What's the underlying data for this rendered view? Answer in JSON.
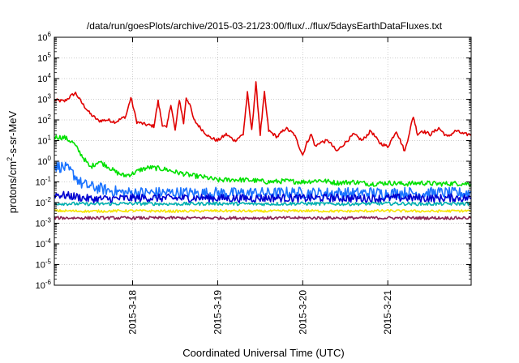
{
  "chart_data": {
    "type": "line",
    "title": "/data/run/goesPlots/archive/2015-03-21/23:00/flux/../flux/5daysEarthDataFluxes.txt",
    "xlabel": "Coordinated Universal Time (UTC)",
    "ylabel": {
      "prefix": "protons/cm",
      "sup": "2",
      "suffix": "-s-sr-MeV"
    },
    "x_range_days": [
      17.08,
      21.98
    ],
    "x_ticks": [
      {
        "day": 18,
        "label": "2015-3-18"
      },
      {
        "day": 19,
        "label": "2015-3-19"
      },
      {
        "day": 20,
        "label": "2015-3-20"
      },
      {
        "day": 21,
        "label": "2015-3-21"
      }
    ],
    "y_scale": "log",
    "y_range": [
      1e-06,
      1000000.0
    ],
    "y_ticks": [
      {
        "exp": -6,
        "base": "10",
        "sup": "-6"
      },
      {
        "exp": -5,
        "base": "10",
        "sup": "-5"
      },
      {
        "exp": -4,
        "base": "10",
        "sup": "-4"
      },
      {
        "exp": -3,
        "base": "10",
        "sup": "-3"
      },
      {
        "exp": -2,
        "base": "10",
        "sup": "-2"
      },
      {
        "exp": -1,
        "base": "10",
        "sup": "-1"
      },
      {
        "exp": 0,
        "base": "10",
        "sup": "0"
      },
      {
        "exp": 1,
        "base": "10",
        "sup": "1"
      },
      {
        "exp": 2,
        "base": "10",
        "sup": "2"
      },
      {
        "exp": 3,
        "base": "10",
        "sup": "3"
      },
      {
        "exp": 4,
        "base": "10",
        "sup": "4"
      },
      {
        "exp": 5,
        "base": "10",
        "sup": "5"
      },
      {
        "exp": 6,
        "base": "10",
        "sup": "6"
      }
    ],
    "grid": true,
    "series": [
      {
        "color": "#e00000",
        "x": [
          17.08,
          17.2,
          17.28,
          17.33,
          17.4,
          17.5,
          17.6,
          17.7,
          17.8,
          17.92,
          17.98,
          18.05,
          18.15,
          18.25,
          18.3,
          18.35,
          18.4,
          18.45,
          18.5,
          18.55,
          18.6,
          18.63,
          18.67,
          18.72,
          18.8,
          18.9,
          19.0,
          19.1,
          19.2,
          19.3,
          19.35,
          19.4,
          19.45,
          19.5,
          19.55,
          19.6,
          19.7,
          19.8,
          19.9,
          20.0,
          20.05,
          20.1,
          20.15,
          20.2,
          20.3,
          20.4,
          20.5,
          20.6,
          20.7,
          20.8,
          20.9,
          21.0,
          21.1,
          21.2,
          21.3,
          21.35,
          21.4,
          21.5,
          21.6,
          21.7,
          21.8,
          21.9,
          21.98
        ],
        "y": [
          900,
          800,
          1500,
          2000,
          700,
          200,
          90,
          100,
          80,
          150,
          1200,
          80,
          60,
          50,
          800,
          60,
          40,
          600,
          30,
          1000,
          70,
          1200,
          600,
          100,
          40,
          15,
          10,
          20,
          10,
          20,
          2000,
          30,
          6000,
          20,
          2000,
          30,
          15,
          40,
          20,
          2,
          8,
          20,
          5,
          8,
          10,
          3,
          8,
          20,
          10,
          30,
          8,
          5,
          30,
          3,
          150,
          20,
          30,
          20,
          40,
          15,
          30,
          20,
          20
        ]
      },
      {
        "color": "#00e000",
        "x": [
          17.08,
          17.2,
          17.3,
          17.4,
          17.5,
          17.6,
          17.7,
          17.8,
          17.9,
          18.0,
          18.1,
          18.2,
          18.3,
          18.4,
          18.5,
          18.6,
          18.7,
          18.8,
          18.9,
          19.0,
          19.2,
          19.4,
          19.6,
          19.8,
          20.0,
          20.2,
          20.4,
          20.6,
          20.8,
          21.0,
          21.2,
          21.4,
          21.6,
          21.8,
          21.98
        ],
        "y": [
          15,
          14,
          8,
          2,
          0.5,
          1,
          0.6,
          0.3,
          0.2,
          0.25,
          0.4,
          0.5,
          0.45,
          0.4,
          0.3,
          0.25,
          0.2,
          0.18,
          0.15,
          0.12,
          0.13,
          0.12,
          0.1,
          0.11,
          0.1,
          0.12,
          0.09,
          0.1,
          0.08,
          0.09,
          0.08,
          0.09,
          0.08,
          0.085,
          0.08
        ]
      },
      {
        "color": "#1a73ff",
        "x": [
          17.08,
          17.2,
          17.3,
          17.4,
          17.5,
          17.6,
          17.7,
          17.8,
          17.9,
          18.0,
          18.2,
          18.4,
          18.6,
          18.8,
          19.0,
          19.2,
          19.4,
          19.6,
          19.8,
          20.0,
          20.2,
          20.4,
          20.6,
          20.8,
          21.0,
          21.2,
          21.4,
          21.6,
          21.8,
          21.98
        ],
        "y": [
          0.6,
          0.5,
          0.25,
          0.08,
          0.06,
          0.05,
          0.04,
          0.035,
          0.03,
          0.03,
          0.03,
          0.03,
          0.03,
          0.028,
          0.03,
          0.028,
          0.03,
          0.028,
          0.03,
          0.03,
          0.028,
          0.03,
          0.028,
          0.03,
          0.028,
          0.03,
          0.028,
          0.03,
          0.028,
          0.03
        ]
      },
      {
        "color": "#0000d0",
        "x": [
          17.08,
          17.3,
          17.5,
          17.7,
          17.9,
          18.2,
          18.5,
          18.8,
          19.1,
          19.4,
          19.7,
          20.0,
          20.3,
          20.6,
          20.9,
          21.2,
          21.5,
          21.8,
          21.98
        ],
        "y": [
          0.025,
          0.02,
          0.015,
          0.015,
          0.016,
          0.017,
          0.016,
          0.017,
          0.016,
          0.016,
          0.017,
          0.016,
          0.017,
          0.016,
          0.016,
          0.017,
          0.016,
          0.017,
          0.016
        ]
      },
      {
        "color": "#00b0b0",
        "x": [
          17.08,
          17.5,
          18.0,
          18.5,
          19.0,
          19.5,
          20.0,
          20.5,
          21.0,
          21.5,
          21.98
        ],
        "y": [
          0.009,
          0.0085,
          0.009,
          0.0085,
          0.009,
          0.0085,
          0.009,
          0.0085,
          0.009,
          0.0085,
          0.009
        ]
      },
      {
        "color": "#f5e600",
        "x": [
          17.08,
          17.5,
          18.0,
          18.5,
          19.0,
          19.5,
          20.0,
          20.5,
          21.0,
          21.5,
          21.98
        ],
        "y": [
          0.004,
          0.0038,
          0.004,
          0.0038,
          0.004,
          0.0038,
          0.004,
          0.0038,
          0.004,
          0.0038,
          0.004
        ]
      },
      {
        "color": "#8b2252",
        "x": [
          17.08,
          17.5,
          18.0,
          18.5,
          19.0,
          19.5,
          20.0,
          20.5,
          21.0,
          21.5,
          21.98
        ],
        "y": [
          0.0018,
          0.0018,
          0.0018,
          0.0018,
          0.0018,
          0.0018,
          0.0018,
          0.0018,
          0.0018,
          0.0018,
          0.0018
        ]
      }
    ]
  }
}
